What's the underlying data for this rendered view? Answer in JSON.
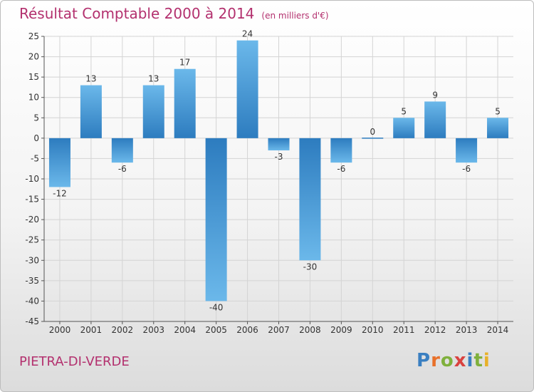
{
  "header": {
    "title": "Résultat Comptable 2000 à 2014",
    "subtitle": "(en milliers d'€)"
  },
  "footer": {
    "commune": "PIETRA-DI-VERDE"
  },
  "logo": {
    "text": "Proxiti",
    "letters": [
      "P",
      "r",
      "o",
      "x",
      "i",
      "t",
      "i"
    ],
    "colors": [
      "#3a7fc1",
      "#e8702a",
      "#7fb03c",
      "#d9423f",
      "#3a7fc1",
      "#7fb03c",
      "#e8b12a"
    ]
  },
  "colors": {
    "accent": "#b3306e",
    "bar_light": "#6bb8ea",
    "bar_dark": "#2d7cbf"
  },
  "chart_data": {
    "type": "bar",
    "categories": [
      "2000",
      "2001",
      "2002",
      "2003",
      "2004",
      "2005",
      "2006",
      "2007",
      "2008",
      "2009",
      "2010",
      "2011",
      "2012",
      "2013",
      "2014"
    ],
    "values": [
      -12,
      13,
      -6,
      13,
      17,
      -40,
      24,
      -3,
      -30,
      -6,
      0,
      5,
      9,
      -6,
      5
    ],
    "title": "Résultat Comptable 2000 à 2014",
    "ylabel": "",
    "xlabel": "",
    "ylim": [
      -45,
      25
    ],
    "yticks": [
      25,
      20,
      15,
      10,
      5,
      0,
      -5,
      -10,
      -15,
      -20,
      -25,
      -30,
      -35,
      -40,
      -45
    ],
    "grid": true
  }
}
